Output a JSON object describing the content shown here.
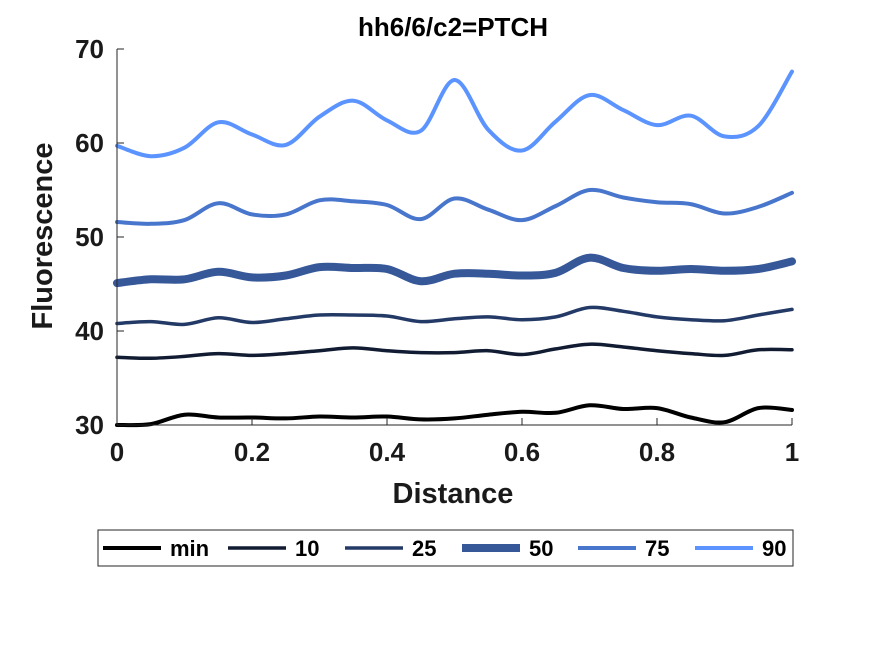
{
  "chart_data": {
    "type": "line",
    "title": "hh6/6/c2=PTCH",
    "xlabel": "Distance",
    "ylabel": "Fluorescence",
    "xlim": [
      0,
      1
    ],
    "ylim": [
      30,
      70
    ],
    "xticks": [
      "0",
      "0.2",
      "0.4",
      "0.6",
      "0.8",
      "1"
    ],
    "yticks": [
      "30",
      "40",
      "50",
      "60",
      "70"
    ],
    "legend_position": "bottom-outside",
    "grid": false,
    "series": [
      {
        "name": "min",
        "color": "#000000",
        "x": [
          0,
          0.05,
          0.1,
          0.15,
          0.2,
          0.25,
          0.3,
          0.35,
          0.4,
          0.45,
          0.5,
          0.55,
          0.6,
          0.65,
          0.7,
          0.75,
          0.8,
          0.85,
          0.9,
          0.95,
          1
        ],
        "y": [
          30.0,
          30.1,
          31.1,
          30.8,
          30.8,
          30.7,
          30.9,
          30.8,
          30.9,
          30.6,
          30.7,
          31.1,
          31.4,
          31.3,
          32.1,
          31.7,
          31.8,
          30.8,
          30.3,
          31.8,
          31.6
        ]
      },
      {
        "name": "10",
        "color": "#111c33",
        "x": [
          0,
          0.05,
          0.1,
          0.15,
          0.2,
          0.25,
          0.3,
          0.35,
          0.4,
          0.45,
          0.5,
          0.55,
          0.6,
          0.65,
          0.7,
          0.75,
          0.8,
          0.85,
          0.9,
          0.95,
          1
        ],
        "y": [
          37.2,
          37.1,
          37.3,
          37.6,
          37.4,
          37.6,
          37.9,
          38.2,
          37.9,
          37.7,
          37.7,
          37.9,
          37.5,
          38.1,
          38.6,
          38.3,
          37.9,
          37.6,
          37.4,
          38.0,
          38.0
        ]
      },
      {
        "name": "25",
        "color": "#243a66",
        "x": [
          0,
          0.05,
          0.1,
          0.15,
          0.2,
          0.25,
          0.3,
          0.35,
          0.4,
          0.45,
          0.5,
          0.55,
          0.6,
          0.65,
          0.7,
          0.75,
          0.8,
          0.85,
          0.9,
          0.95,
          1
        ],
        "y": [
          40.8,
          41.0,
          40.7,
          41.4,
          40.9,
          41.3,
          41.7,
          41.7,
          41.6,
          41.0,
          41.3,
          41.5,
          41.2,
          41.5,
          42.5,
          42.1,
          41.5,
          41.2,
          41.1,
          41.7,
          42.3
        ]
      },
      {
        "name": "50",
        "color": "#365899",
        "x": [
          0,
          0.05,
          0.1,
          0.15,
          0.2,
          0.25,
          0.3,
          0.35,
          0.4,
          0.45,
          0.5,
          0.55,
          0.6,
          0.65,
          0.7,
          0.75,
          0.8,
          0.85,
          0.9,
          0.95,
          1
        ],
        "y": [
          45.1,
          45.5,
          45.5,
          46.3,
          45.7,
          45.9,
          46.8,
          46.7,
          46.6,
          45.3,
          46.1,
          46.1,
          45.9,
          46.2,
          47.8,
          46.7,
          46.4,
          46.6,
          46.4,
          46.6,
          47.4
        ]
      },
      {
        "name": "75",
        "color": "#4876cc",
        "x": [
          0,
          0.05,
          0.1,
          0.15,
          0.2,
          0.25,
          0.3,
          0.35,
          0.4,
          0.45,
          0.5,
          0.55,
          0.6,
          0.65,
          0.7,
          0.75,
          0.8,
          0.85,
          0.9,
          0.95,
          1
        ],
        "y": [
          51.6,
          51.4,
          51.8,
          53.6,
          52.4,
          52.4,
          53.9,
          53.8,
          53.4,
          51.9,
          54.1,
          52.9,
          51.8,
          53.3,
          55.0,
          54.2,
          53.7,
          53.5,
          52.5,
          53.2,
          54.7
        ]
      },
      {
        "name": "90",
        "color": "#5b93ff",
        "x": [
          0,
          0.05,
          0.1,
          0.15,
          0.2,
          0.25,
          0.3,
          0.35,
          0.4,
          0.45,
          0.5,
          0.55,
          0.6,
          0.65,
          0.7,
          0.75,
          0.8,
          0.85,
          0.9,
          0.95,
          1
        ],
        "y": [
          59.7,
          58.6,
          59.5,
          62.2,
          60.9,
          59.8,
          62.8,
          64.5,
          62.4,
          61.3,
          66.7,
          61.4,
          59.2,
          62.3,
          65.1,
          63.5,
          61.9,
          62.9,
          60.7,
          61.8,
          67.6
        ]
      }
    ]
  }
}
